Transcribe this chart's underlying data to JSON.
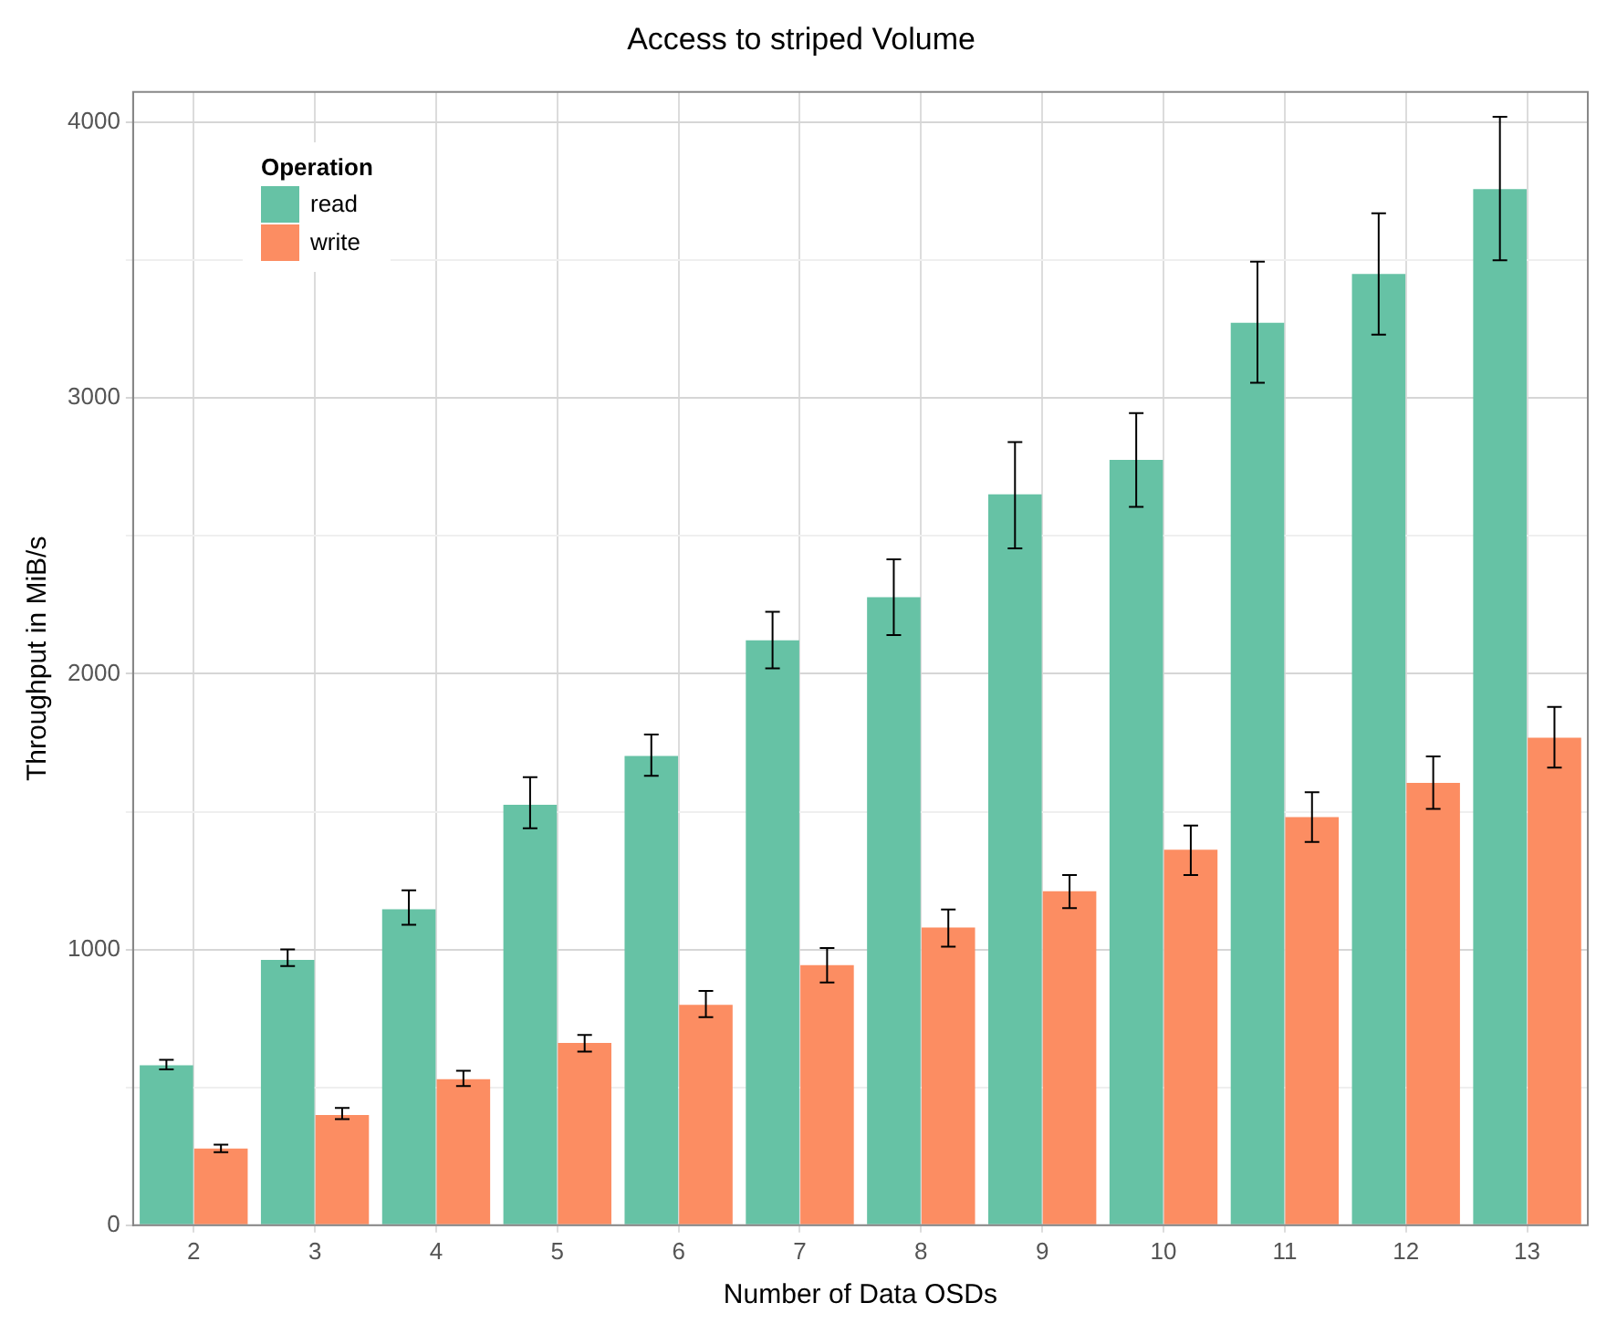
{
  "chart_data": {
    "type": "bar",
    "title": "Access to striped Volume",
    "xlabel": "Number of Data OSDs",
    "ylabel": "Throughput in MiB/s",
    "legend_title": "Operation",
    "categories": [
      "2",
      "3",
      "4",
      "5",
      "6",
      "7",
      "8",
      "9",
      "10",
      "11",
      "12",
      "13"
    ],
    "series": [
      {
        "name": "read",
        "color": "#66c2a5",
        "values": [
          580,
          962,
          1146,
          1525,
          1702,
          2121,
          2278,
          2651,
          2776,
          3273,
          3450,
          3758
        ],
        "errors": [
          [
            565,
            600
          ],
          [
            940,
            1000
          ],
          [
            1090,
            1215
          ],
          [
            1440,
            1625
          ],
          [
            1630,
            1780
          ],
          [
            2020,
            2225
          ],
          [
            2140,
            2415
          ],
          [
            2455,
            2840
          ],
          [
            2605,
            2945
          ],
          [
            3055,
            3495
          ],
          [
            3230,
            3670
          ],
          [
            3500,
            4020
          ]
        ]
      },
      {
        "name": "write",
        "color": "#fc8d62",
        "values": [
          278,
          400,
          530,
          661,
          799,
          943,
          1080,
          1211,
          1362,
          1480,
          1604,
          1768
        ],
        "errors": [
          [
            265,
            292
          ],
          [
            385,
            425
          ],
          [
            505,
            560
          ],
          [
            630,
            690
          ],
          [
            755,
            850
          ],
          [
            880,
            1005
          ],
          [
            1010,
            1145
          ],
          [
            1150,
            1270
          ],
          [
            1270,
            1450
          ],
          [
            1390,
            1570
          ],
          [
            1510,
            1700
          ],
          [
            1660,
            1880
          ]
        ]
      }
    ],
    "ylim": [
      0,
      4110
    ],
    "yticks": [
      0,
      {
        "value": 500,
        "label": null
      },
      1000,
      {
        "value": 1500,
        "label": null
      },
      2000,
      {
        "value": 2500,
        "label": null
      },
      3000,
      {
        "value": 3500,
        "label": null
      },
      4000
    ],
    "grid": true,
    "legend": "top left"
  }
}
